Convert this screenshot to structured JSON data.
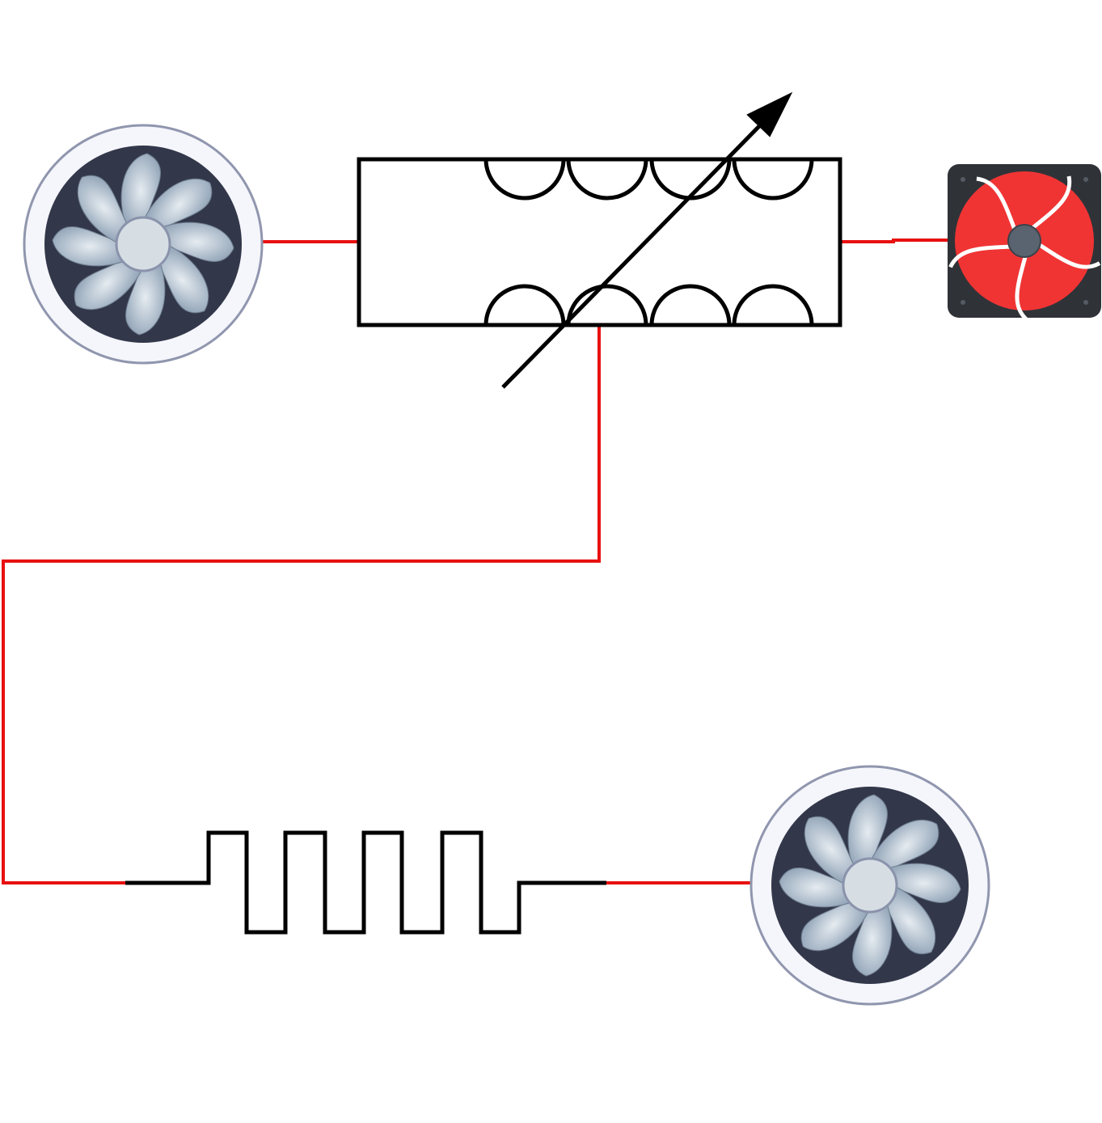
{
  "diagram": {
    "components": [
      {
        "id": "fan-left",
        "kind": "round-fan",
        "icon": "fan-icon"
      },
      {
        "id": "variable-transformer",
        "kind": "variable-inductor-coupled",
        "icon": "variable-transformer-icon"
      },
      {
        "id": "fan-right",
        "kind": "square-fan",
        "icon": "fan-icon"
      },
      {
        "id": "resistor",
        "kind": "resistor-square-wave",
        "icon": "resistor-icon"
      },
      {
        "id": "fan-bottom",
        "kind": "round-fan",
        "icon": "fan-icon"
      }
    ],
    "connections": [
      {
        "from": "fan-left",
        "to": "variable-transformer"
      },
      {
        "from": "variable-transformer",
        "to": "fan-right"
      },
      {
        "from": "variable-transformer",
        "to": "resistor"
      },
      {
        "from": "resistor",
        "to": "fan-bottom"
      }
    ]
  },
  "colors": {
    "wire": "#e81010",
    "symbol": "#000000",
    "fan_ring": "#f4f6fb",
    "fan_ring_border": "#9096ae",
    "fan_body": "#33374a",
    "fan_blade": "#a8b8c8",
    "fan_hub": "#d6dee4",
    "square_fan_frame": "#2f3338",
    "square_fan_blade": "#f03434",
    "square_fan_hub": "#5a6470"
  }
}
